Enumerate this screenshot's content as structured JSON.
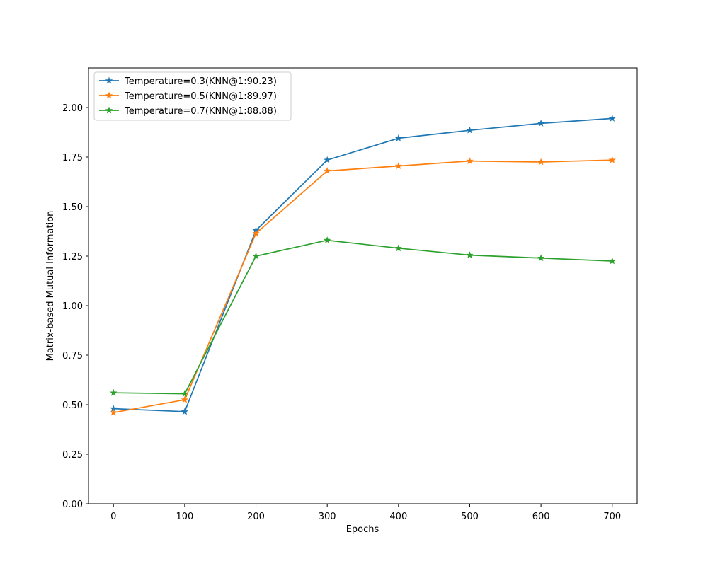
{
  "chart_data": {
    "type": "line",
    "title": "",
    "xlabel": "Epochs",
    "ylabel": "Matrix-based Mutual Information",
    "x": [
      0,
      100,
      200,
      300,
      400,
      500,
      600,
      700
    ],
    "xticks": [
      0,
      100,
      200,
      300,
      400,
      500,
      600,
      700
    ],
    "xtick_labels": [
      "0",
      "100",
      "200",
      "300",
      "400",
      "500",
      "600",
      "700"
    ],
    "yticks": [
      0,
      0.25,
      0.5,
      0.75,
      1.0,
      1.25,
      1.5,
      1.75,
      2.0
    ],
    "ytick_labels": [
      "0.00",
      "0.25",
      "0.50",
      "0.75",
      "1.00",
      "1.25",
      "1.50",
      "1.75",
      "2.00"
    ],
    "xlim": [
      -35,
      735
    ],
    "ylim": [
      0,
      2.2
    ],
    "grid": false,
    "legend_position": "top-left",
    "marker": "star",
    "series": [
      {
        "name": "Temperature=0.3(KNN@1:90.23)",
        "color": "#1f77b4",
        "values": [
          0.48,
          0.465,
          1.38,
          1.735,
          1.845,
          1.885,
          1.92,
          1.945
        ]
      },
      {
        "name": "Temperature=0.5(KNN@1:89.97)",
        "color": "#ff7f0e",
        "values": [
          0.46,
          0.525,
          1.365,
          1.68,
          1.705,
          1.73,
          1.725,
          1.735
        ]
      },
      {
        "name": "Temperature=0.7(KNN@1:88.88)",
        "color": "#2ca02c",
        "values": [
          0.56,
          0.555,
          1.25,
          1.33,
          1.29,
          1.255,
          1.24,
          1.225
        ]
      }
    ]
  }
}
